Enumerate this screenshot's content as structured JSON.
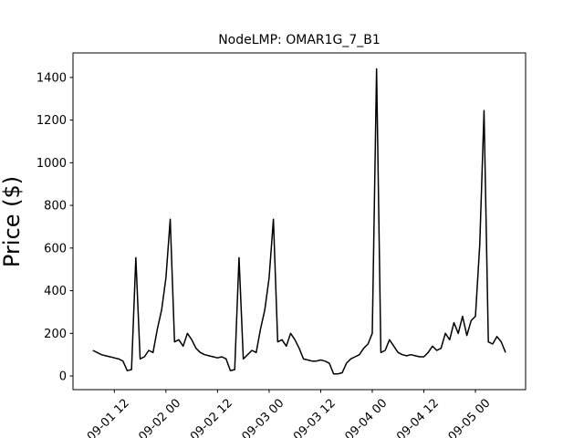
{
  "chart_data": {
    "type": "line",
    "title": "NodeLMP: OMAR1G_7_B1",
    "y_label": "Price ($)",
    "x": [
      "09-01 07",
      "09-01 08",
      "09-01 09",
      "09-01 10",
      "09-01 11",
      "09-01 12",
      "09-01 13",
      "09-01 14",
      "09-01 15",
      "09-01 16",
      "09-01 17",
      "09-01 18",
      "09-01 19",
      "09-01 20",
      "09-01 21",
      "09-01 22",
      "09-01 23",
      "09-02 00",
      "09-02 01",
      "09-02 02",
      "09-02 03",
      "09-02 04",
      "09-02 05",
      "09-02 06",
      "09-02 07",
      "09-02 08",
      "09-02 09",
      "09-02 10",
      "09-02 11",
      "09-02 12",
      "09-02 13",
      "09-02 14",
      "09-02 15",
      "09-02 16",
      "09-02 17",
      "09-02 18",
      "09-02 19",
      "09-02 20",
      "09-02 21",
      "09-02 22",
      "09-02 23",
      "09-03 00",
      "09-03 01",
      "09-03 02",
      "09-03 03",
      "09-03 04",
      "09-03 05",
      "09-03 06",
      "09-03 07",
      "09-03 08",
      "09-03 09",
      "09-03 10",
      "09-03 11",
      "09-03 12",
      "09-03 13",
      "09-03 14",
      "09-03 15",
      "09-03 16",
      "09-03 17",
      "09-03 18",
      "09-03 19",
      "09-03 20",
      "09-03 21",
      "09-03 22",
      "09-03 23",
      "09-04 00",
      "09-04 01",
      "09-04 02",
      "09-04 03",
      "09-04 04",
      "09-04 05",
      "09-04 06",
      "09-04 07",
      "09-04 08",
      "09-04 09",
      "09-04 10",
      "09-04 11",
      "09-04 12",
      "09-04 13",
      "09-04 14",
      "09-04 15",
      "09-04 16",
      "09-04 17",
      "09-04 18",
      "09-04 19",
      "09-04 20",
      "09-04 21",
      "09-04 22",
      "09-04 23",
      "09-05 00",
      "09-05 01",
      "09-05 02",
      "09-05 03",
      "09-05 04",
      "09-05 05",
      "09-05 06",
      "09-05 07"
    ],
    "series": [
      {
        "color": "#000000",
        "values": [
          120,
          110,
          100,
          95,
          90,
          85,
          80,
          70,
          25,
          30,
          555,
          80,
          90,
          120,
          110,
          220,
          310,
          460,
          735,
          160,
          170,
          140,
          200,
          170,
          130,
          110,
          100,
          95,
          90,
          85,
          90,
          80,
          25,
          30,
          555,
          80,
          100,
          120,
          110,
          220,
          310,
          460,
          735,
          160,
          170,
          140,
          200,
          170,
          130,
          80,
          75,
          70,
          70,
          75,
          70,
          60,
          10,
          10,
          15,
          60,
          80,
          90,
          100,
          130,
          150,
          200,
          1440,
          110,
          120,
          170,
          140,
          110,
          100,
          95,
          100,
          95,
          90,
          90,
          110,
          140,
          120,
          130,
          200,
          170,
          250,
          200,
          280,
          190,
          260,
          280,
          615,
          1245,
          160,
          150,
          185,
          160,
          110
        ]
      }
    ],
    "xlim": [
      "09-01 02:23",
      "09-05 11:40"
    ],
    "xticks": [
      "09-01 12",
      "09-02 00",
      "09-02 12",
      "09-03 00",
      "09-03 12",
      "09-04 00",
      "09-04 12",
      "09-05 00"
    ],
    "ylim": [
      -64,
      1515
    ],
    "yticks": [
      0,
      200,
      400,
      600,
      800,
      1000,
      1200,
      1400
    ]
  }
}
